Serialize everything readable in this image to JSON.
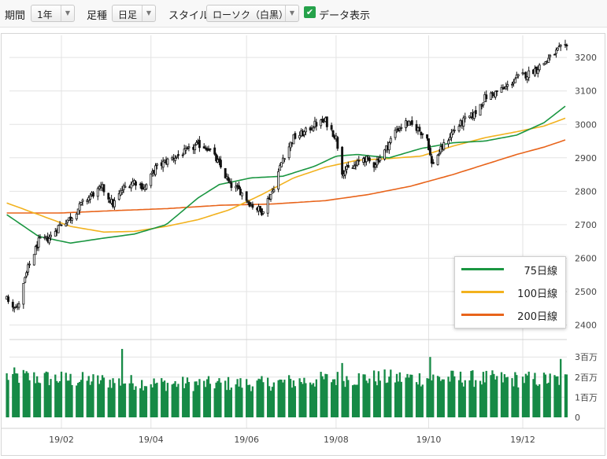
{
  "toolbar": {
    "period_label": "期間",
    "period_value": "1年",
    "type_label": "足種",
    "type_value": "日足",
    "style_label": "スタイル",
    "style_value": "ローソク（白黒）",
    "show_data_label": "データ表示",
    "show_data_checked": true
  },
  "colors": {
    "ma75": "#1a9641",
    "ma100": "#f2b21e",
    "ma200": "#e8641b",
    "volume": "#168a46",
    "candle": "#111111",
    "grid": "#e3e3e3"
  },
  "legend": [
    {
      "label": "75日線",
      "color": "#1a9641"
    },
    {
      "label": "100日線",
      "color": "#f2b21e"
    },
    {
      "label": "200日線",
      "color": "#e8641b"
    }
  ],
  "chart_data": {
    "type": "candlestick",
    "x_tick_labels": [
      "19/02",
      "19/04",
      "19/06",
      "19/08",
      "19/10",
      "19/12"
    ],
    "price_axis": {
      "ticks": [
        2400,
        2500,
        2600,
        2700,
        2800,
        2900,
        3000,
        3100,
        3200
      ],
      "labels": [
        "2400",
        "2500",
        "2600",
        "2700",
        "2800",
        "2900",
        "3000",
        "3100",
        "3200"
      ],
      "range": [
        2355,
        3260
      ],
      "position": "right"
    },
    "volume_axis": {
      "ticks": [
        0,
        1000000,
        2000000,
        3000000
      ],
      "labels": [
        "0",
        "1百万",
        "2百万",
        "3百万"
      ],
      "range": [
        0,
        3500000
      ],
      "position": "right"
    },
    "close_anchors": [
      [
        "2018-12-27",
        2480
      ],
      [
        "2019-01-03",
        2450
      ],
      [
        "2019-01-10",
        2570
      ],
      [
        "2019-01-17",
        2650
      ],
      [
        "2019-01-24",
        2660
      ],
      [
        "2019-01-31",
        2700
      ],
      [
        "2019-02-07",
        2720
      ],
      [
        "2019-02-14",
        2760
      ],
      [
        "2019-02-21",
        2790
      ],
      [
        "2019-02-28",
        2810
      ],
      [
        "2019-03-07",
        2760
      ],
      [
        "2019-03-14",
        2810
      ],
      [
        "2019-03-21",
        2830
      ],
      [
        "2019-03-28",
        2810
      ],
      [
        "2019-04-04",
        2870
      ],
      [
        "2019-04-11",
        2890
      ],
      [
        "2019-04-18",
        2905
      ],
      [
        "2019-04-25",
        2920
      ],
      [
        "2019-05-02",
        2940
      ],
      [
        "2019-05-09",
        2930
      ],
      [
        "2019-05-16",
        2880
      ],
      [
        "2019-05-23",
        2820
      ],
      [
        "2019-05-30",
        2800
      ],
      [
        "2019-06-06",
        2760
      ],
      [
        "2019-06-13",
        2740
      ],
      [
        "2019-06-20",
        2800
      ],
      [
        "2019-06-27",
        2900
      ],
      [
        "2019-07-04",
        2960
      ],
      [
        "2019-07-11",
        2975
      ],
      [
        "2019-07-18",
        3000
      ],
      [
        "2019-07-25",
        3010
      ],
      [
        "2019-08-01",
        2960
      ],
      [
        "2019-08-05",
        2860
      ],
      [
        "2019-08-12",
        2870
      ],
      [
        "2019-08-19",
        2900
      ],
      [
        "2019-08-26",
        2880
      ],
      [
        "2019-09-02",
        2920
      ],
      [
        "2019-09-09",
        2980
      ],
      [
        "2019-09-16",
        3005
      ],
      [
        "2019-09-23",
        2990
      ],
      [
        "2019-09-30",
        2960
      ],
      [
        "2019-10-03",
        2880
      ],
      [
        "2019-10-10",
        2930
      ],
      [
        "2019-10-17",
        2980
      ],
      [
        "2019-10-24",
        3010
      ],
      [
        "2019-10-31",
        3030
      ],
      [
        "2019-11-07",
        3080
      ],
      [
        "2019-11-14",
        3095
      ],
      [
        "2019-11-21",
        3110
      ],
      [
        "2019-11-28",
        3140
      ],
      [
        "2019-12-05",
        3150
      ],
      [
        "2019-12-12",
        3170
      ],
      [
        "2019-12-19",
        3195
      ],
      [
        "2019-12-26",
        3225
      ],
      [
        "2019-12-31",
        3230
      ]
    ],
    "ma75_anchors": [
      [
        "2018-12-27",
        2730
      ],
      [
        "2019-01-17",
        2665
      ],
      [
        "2019-02-07",
        2645
      ],
      [
        "2019-03-01",
        2660
      ],
      [
        "2019-03-21",
        2672
      ],
      [
        "2019-04-11",
        2700
      ],
      [
        "2019-05-02",
        2780
      ],
      [
        "2019-05-16",
        2820
      ],
      [
        "2019-06-06",
        2840
      ],
      [
        "2019-06-27",
        2845
      ],
      [
        "2019-07-18",
        2875
      ],
      [
        "2019-08-01",
        2905
      ],
      [
        "2019-08-15",
        2910
      ],
      [
        "2019-09-05",
        2900
      ],
      [
        "2019-09-26",
        2928
      ],
      [
        "2019-10-17",
        2945
      ],
      [
        "2019-11-07",
        2950
      ],
      [
        "2019-11-28",
        2968
      ],
      [
        "2019-12-16",
        3005
      ],
      [
        "2019-12-31",
        3058
      ]
    ],
    "ma100_anchors": [
      [
        "2018-12-27",
        2765
      ],
      [
        "2019-01-17",
        2730
      ],
      [
        "2019-02-07",
        2695
      ],
      [
        "2019-03-01",
        2678
      ],
      [
        "2019-03-21",
        2680
      ],
      [
        "2019-04-11",
        2695
      ],
      [
        "2019-05-02",
        2715
      ],
      [
        "2019-05-23",
        2745
      ],
      [
        "2019-06-13",
        2790
      ],
      [
        "2019-07-04",
        2840
      ],
      [
        "2019-07-25",
        2872
      ],
      [
        "2019-08-15",
        2893
      ],
      [
        "2019-09-05",
        2898
      ],
      [
        "2019-09-26",
        2905
      ],
      [
        "2019-10-17",
        2935
      ],
      [
        "2019-11-07",
        2960
      ],
      [
        "2019-11-28",
        2978
      ],
      [
        "2019-12-16",
        2995
      ],
      [
        "2019-12-31",
        3020
      ]
    ],
    "ma200_anchors": [
      [
        "2018-12-27",
        2735
      ],
      [
        "2019-01-31",
        2735
      ],
      [
        "2019-03-07",
        2742
      ],
      [
        "2019-04-11",
        2748
      ],
      [
        "2019-05-16",
        2758
      ],
      [
        "2019-06-20",
        2762
      ],
      [
        "2019-07-25",
        2772
      ],
      [
        "2019-08-22",
        2790
      ],
      [
        "2019-09-19",
        2815
      ],
      [
        "2019-10-17",
        2850
      ],
      [
        "2019-11-07",
        2880
      ],
      [
        "2019-11-28",
        2910
      ],
      [
        "2019-12-16",
        2932
      ],
      [
        "2019-12-31",
        2955
      ]
    ],
    "volume_anchors": [
      [
        "2018-12-27",
        2200000
      ],
      [
        "2019-02-14",
        2000000
      ],
      [
        "2019-04-11",
        1800000
      ],
      [
        "2019-06-13",
        1800000
      ],
      [
        "2019-08-08",
        2100000
      ],
      [
        "2019-10-03",
        2100000
      ],
      [
        "2019-12-31",
        2000000
      ]
    ],
    "volume_spikes": [
      [
        "2019-03-13",
        3400000
      ],
      [
        "2019-08-05",
        2700000
      ],
      [
        "2019-10-02",
        3000000
      ],
      [
        "2019-12-27",
        2900000
      ]
    ],
    "grid": true,
    "legend_position": "bottom-right"
  }
}
